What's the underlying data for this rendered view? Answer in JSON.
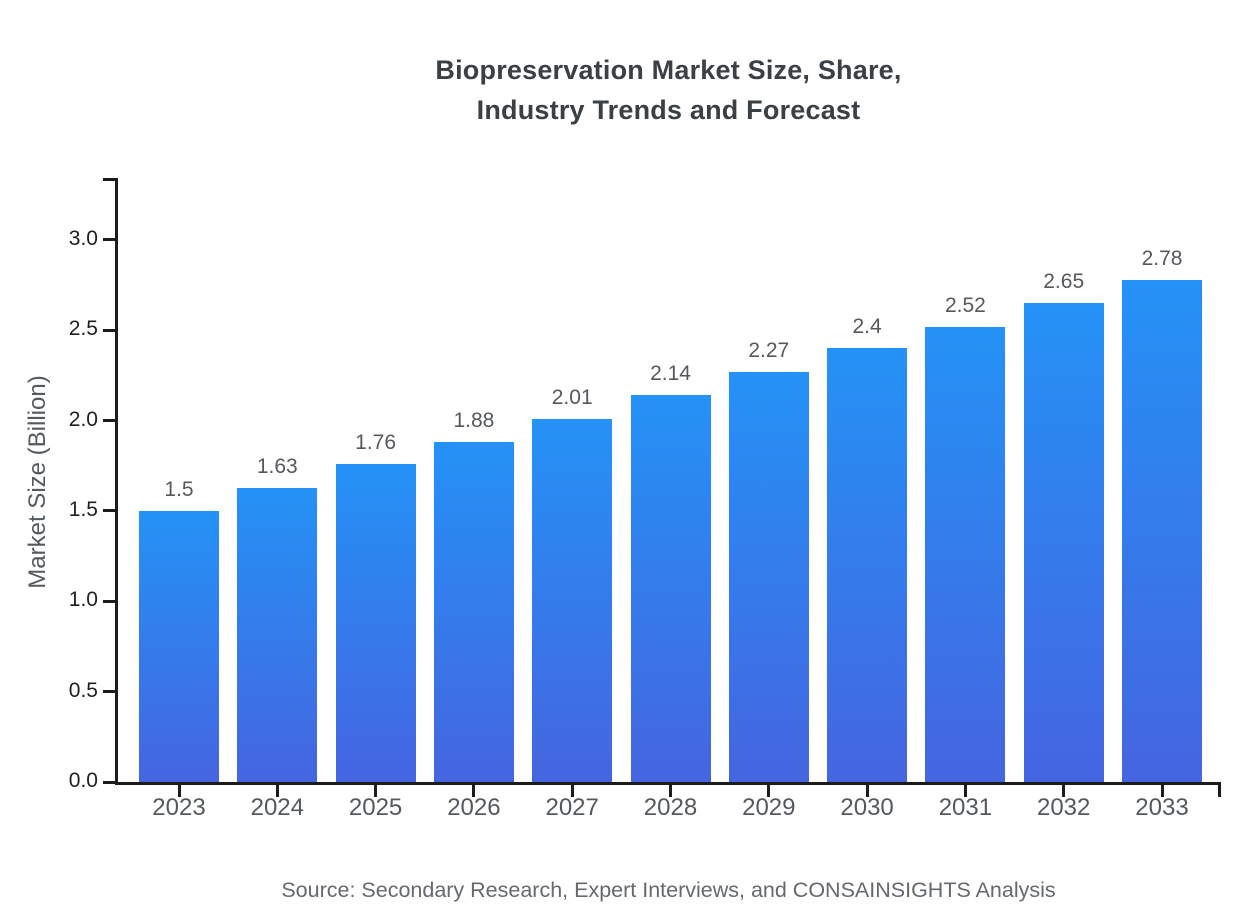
{
  "chart_data": {
    "type": "bar",
    "title": "Biopreservation Market Size, Share,\nIndustry Trends and Forecast",
    "categories": [
      "2023",
      "2024",
      "2025",
      "2026",
      "2027",
      "2028",
      "2029",
      "2030",
      "2031",
      "2032",
      "2033"
    ],
    "values": [
      1.5,
      1.63,
      1.76,
      1.88,
      2.01,
      2.14,
      2.27,
      2.4,
      2.52,
      2.65,
      2.78
    ],
    "value_labels": [
      "1.5",
      "1.63",
      "1.76",
      "1.88",
      "2.01",
      "2.14",
      "2.27",
      "2.4",
      "2.52",
      "2.65",
      "2.78"
    ],
    "xlabel": "",
    "ylabel": "Market Size (Billion)",
    "ylim": [
      0,
      3.35
    ],
    "yticks": [
      "0.0",
      "0.5",
      "1.0",
      "1.5",
      "2.0",
      "2.5",
      "3.0"
    ],
    "grid": false,
    "legend_position": "none",
    "bar_color_top": "#2492f6",
    "bar_color_bottom": "#4565e0"
  },
  "source_note": "Source: Secondary Research, Expert Interviews, and CONSAINSIGHTS Analysis"
}
